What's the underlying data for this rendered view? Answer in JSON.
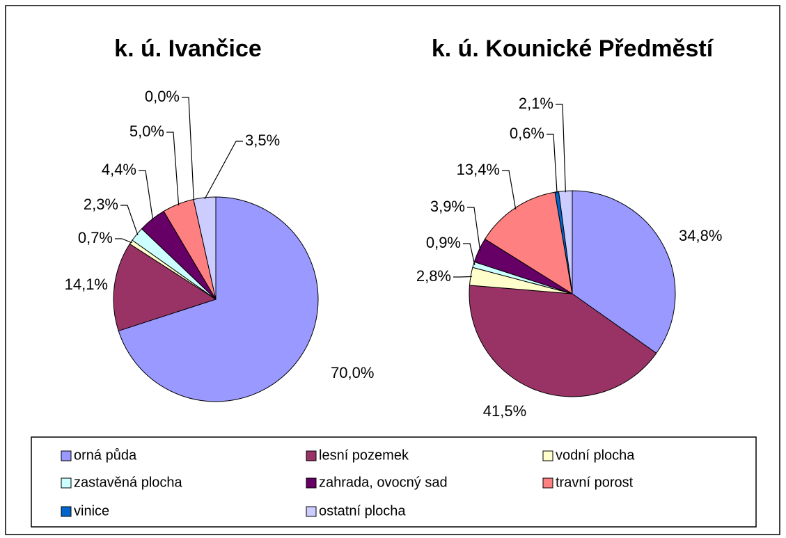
{
  "legend": {
    "categories": [
      "orná půda",
      "lesní pozemek",
      "vodní plocha",
      "zastavěná plocha",
      "zahrada, ovocný sad",
      "travní porost",
      "vinice",
      "ostatní plocha"
    ],
    "colors": [
      "#9999ff",
      "#993366",
      "#ffffcc",
      "#ccffff",
      "#660066",
      "#ff8080",
      "#0066cc",
      "#ccccff"
    ]
  },
  "chart_data": [
    {
      "type": "pie",
      "title": "k. ú. Ivančice",
      "values": [
        70.0,
        14.1,
        0.7,
        2.3,
        4.4,
        5.0,
        0.0,
        3.5
      ],
      "value_labels": [
        "70,0%",
        "14,1%",
        "0,7%",
        "2,3%",
        "4,4%",
        "5,0%",
        "0,0%",
        "3,5%"
      ]
    },
    {
      "type": "pie",
      "title": "k. ú. Kounické Předměstí",
      "values": [
        34.8,
        41.5,
        2.8,
        0.9,
        3.9,
        13.4,
        0.6,
        2.1
      ],
      "value_labels": [
        "34,8%",
        "41,5%",
        "2,8%",
        "0,9%",
        "3,9%",
        "13,4%",
        "0,6%",
        "2,1%"
      ]
    }
  ]
}
